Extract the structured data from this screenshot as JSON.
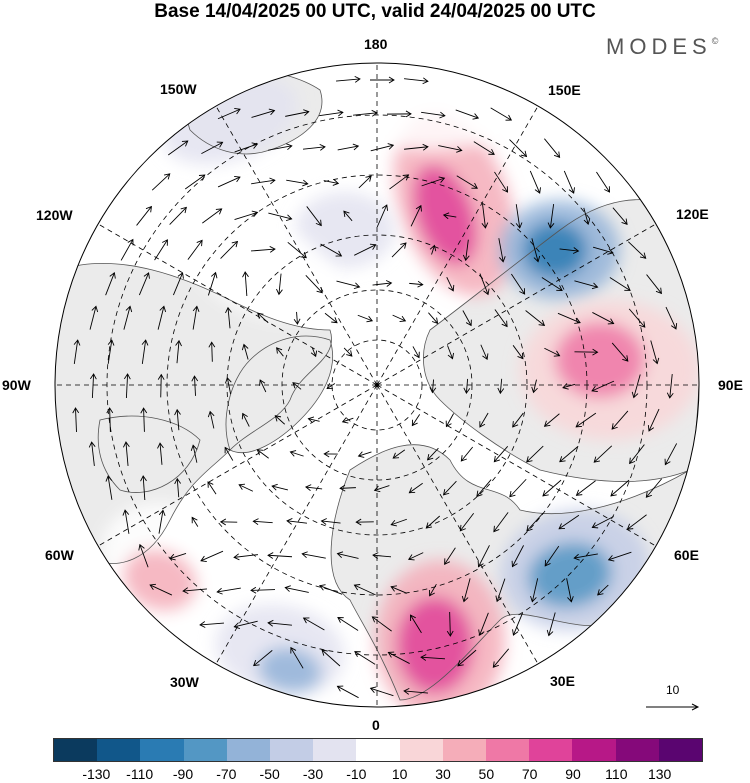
{
  "title": "Base 14/04/2025 00 UTC, valid 24/04/2025 00 UTC",
  "brand": "MODES",
  "brand_mark": "©",
  "longitude_labels": {
    "l180": "180",
    "l150e": "150E",
    "l120e": "120E",
    "l90e": "90E",
    "l60e": "60E",
    "l30e": "30E",
    "l0": "0",
    "l30w": "30W",
    "l60w": "60W",
    "l90w": "90W",
    "l120w": "120W",
    "l150w": "150W"
  },
  "vector_reference": {
    "label": "10"
  },
  "colorbar": {
    "ticks": [
      "-130",
      "-110",
      "-90",
      "-70",
      "-50",
      "-30",
      "-10",
      "10",
      "30",
      "50",
      "70",
      "90",
      "110",
      "130"
    ],
    "colors": [
      "#0b3a5e",
      "#11578a",
      "#2a7bb3",
      "#5397c4",
      "#93b3d8",
      "#c3cde6",
      "#e3e3f0",
      "#ffffff",
      "#f9d6d8",
      "#f5adb9",
      "#ef78a6",
      "#e0439a",
      "#b71887",
      "#85097a",
      "#5a0570"
    ]
  },
  "anomalies": [
    {
      "name": "pos-east-siberia",
      "polarity": "positive",
      "level": 90
    },
    {
      "name": "neg-central-siberia",
      "polarity": "negative",
      "level": -90
    },
    {
      "name": "pos-western-siberia",
      "polarity": "positive",
      "level": 70
    },
    {
      "name": "neg-russia",
      "polarity": "negative",
      "level": -70
    },
    {
      "name": "pos-europe",
      "polarity": "positive",
      "level": 90
    },
    {
      "name": "neg-atlantic",
      "polarity": "negative",
      "level": -50
    },
    {
      "name": "pos-newfoundland",
      "polarity": "positive",
      "level": 50
    },
    {
      "name": "neg-bering",
      "polarity": "negative",
      "level": -50
    },
    {
      "name": "pos-canada",
      "polarity": "positive",
      "level": 50
    },
    {
      "name": "neg-alaska",
      "polarity": "negative",
      "level": -30
    },
    {
      "name": "pos-pacific",
      "polarity": "positive",
      "level": 30
    }
  ],
  "colors": {
    "land": "#ebebeb",
    "coast": "#555555",
    "grid": "#000000",
    "vector": "#000000"
  }
}
